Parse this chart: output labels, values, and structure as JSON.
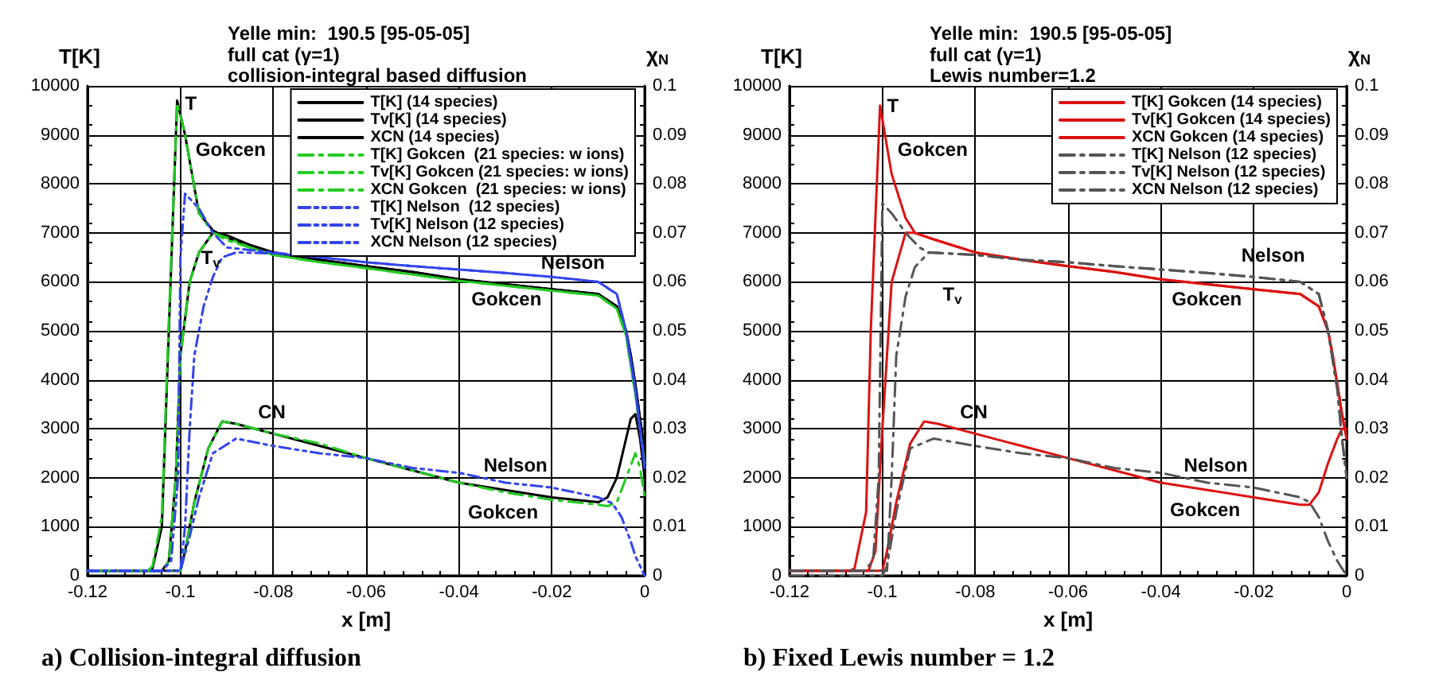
{
  "chart_data": [
    {
      "type": "line",
      "title": "Yelle min:  190.5 [95-05-05]",
      "subtitle": "full cat (γ=1)\ncollision-integral based diffusion",
      "xlabel": "x [m]",
      "ylabel": "T[K]",
      "y2label": "χ$_{N}$",
      "xlim": [
        -0.12,
        0
      ],
      "xticks": [
        -0.12,
        -0.1,
        -0.08,
        -0.06,
        -0.04,
        -0.02,
        0
      ],
      "ylim": [
        0,
        10000
      ],
      "yticks": [
        0,
        1000,
        2000,
        3000,
        4000,
        5000,
        6000,
        7000,
        8000,
        9000,
        10000
      ],
      "y2lim": [
        0,
        0.1
      ],
      "y2ticks": [
        0,
        0.01,
        0.02,
        0.03,
        0.04,
        0.05,
        0.06,
        0.07,
        0.08,
        0.09,
        0.1
      ],
      "grid": true,
      "legend": "top right",
      "marker": "none",
      "series": [
        {
          "name": "T[K] (14 species)",
          "color": "#000000",
          "line_style": "solid",
          "x": [
            -0.12,
            -0.107,
            -0.106,
            -0.104,
            -0.1025,
            -0.1007,
            -0.099,
            -0.096,
            -0.093,
            -0.09,
            -0.085,
            -0.08,
            -0.07,
            -0.06,
            -0.05,
            -0.04,
            -0.03,
            -0.02,
            -0.01,
            -0.006,
            -0.004,
            -0.003,
            -0.002,
            -0.001,
            0
          ],
          "values": [
            100,
            100,
            150,
            1000,
            5000,
            9700,
            9000,
            7400,
            7050,
            6900,
            6750,
            6600,
            6450,
            6320,
            6200,
            6050,
            5950,
            5850,
            5750,
            5500,
            5000,
            4500,
            3900,
            3200,
            2500
          ]
        },
        {
          "name": "Tv[K] (14 species)",
          "color": "#000000",
          "line_style": "solid",
          "x": [
            -0.12,
            -0.104,
            -0.1025,
            -0.101,
            -0.1,
            -0.098,
            -0.096,
            -0.093,
            -0.09,
            -0.085,
            -0.08,
            -0.07,
            -0.06,
            -0.05,
            -0.04,
            -0.03,
            -0.02,
            -0.01,
            -0.006,
            -0.004,
            -0.003,
            -0.002,
            -0.001,
            0
          ],
          "values": [
            100,
            100,
            300,
            2000,
            4500,
            6000,
            6600,
            7000,
            6950,
            6750,
            6600,
            6450,
            6320,
            6200,
            6050,
            5950,
            5850,
            5750,
            5500,
            5000,
            4500,
            3900,
            3200,
            2500
          ]
        },
        {
          "name": "XCN (14 species)",
          "color": "#000000",
          "line_style": "solid",
          "axis": "y2",
          "x": [
            -0.12,
            -0.1,
            -0.099,
            -0.097,
            -0.094,
            -0.091,
            -0.088,
            -0.08,
            -0.07,
            -0.06,
            -0.05,
            -0.04,
            -0.03,
            -0.02,
            -0.01,
            -0.008,
            -0.006,
            -0.004,
            -0.003,
            -0.002,
            -0.001,
            0
          ],
          "values": [
            0.001,
            0.001,
            0.005,
            0.015,
            0.026,
            0.0315,
            0.031,
            0.029,
            0.0265,
            0.024,
            0.0215,
            0.019,
            0.0175,
            0.016,
            0.015,
            0.016,
            0.02,
            0.028,
            0.032,
            0.033,
            0.028,
            0.02
          ]
        },
        {
          "name": "T[K] Gokcen  (21 species: w ions)",
          "color": "#22cc22",
          "line_style": "dashed",
          "x": [
            -0.12,
            -0.107,
            -0.106,
            -0.104,
            -0.1025,
            -0.1007,
            -0.099,
            -0.096,
            -0.093,
            -0.09,
            -0.085,
            -0.08,
            -0.07,
            -0.06,
            -0.05,
            -0.04,
            -0.03,
            -0.02,
            -0.01,
            -0.006,
            -0.004,
            -0.003,
            -0.002,
            -0.001,
            0
          ],
          "values": [
            100,
            100,
            200,
            1200,
            5200,
            9650,
            9000,
            7400,
            7000,
            6850,
            6700,
            6550,
            6400,
            6280,
            6150,
            6020,
            5920,
            5820,
            5720,
            5450,
            4900,
            4300,
            3700,
            3000,
            2300
          ]
        },
        {
          "name": "Tv[K] Gokcen (21 species: w ions)",
          "color": "#22cc22",
          "line_style": "dashed",
          "x": [
            -0.12,
            -0.104,
            -0.1025,
            -0.101,
            -0.1,
            -0.098,
            -0.096,
            -0.093,
            -0.09,
            -0.085,
            -0.08,
            -0.07,
            -0.06,
            -0.05,
            -0.04,
            -0.03,
            -0.02,
            -0.01,
            -0.006,
            -0.004,
            -0.003,
            -0.002,
            -0.001,
            0
          ],
          "values": [
            100,
            100,
            300,
            2000,
            4500,
            6000,
            6600,
            7000,
            6900,
            6700,
            6550,
            6400,
            6280,
            6150,
            6020,
            5920,
            5820,
            5720,
            5450,
            4900,
            4300,
            3700,
            3000,
            2300
          ]
        },
        {
          "name": "XCN Gokcen  (21 species: w ions)",
          "color": "#22cc22",
          "line_style": "dashed",
          "axis": "y2",
          "x": [
            -0.12,
            -0.1,
            -0.099,
            -0.097,
            -0.094,
            -0.091,
            -0.088,
            -0.08,
            -0.07,
            -0.06,
            -0.05,
            -0.04,
            -0.03,
            -0.02,
            -0.01,
            -0.008,
            -0.006,
            -0.004,
            -0.002,
            -0.001,
            0
          ],
          "values": [
            0.001,
            0.001,
            0.005,
            0.015,
            0.026,
            0.0315,
            0.031,
            0.029,
            0.027,
            0.024,
            0.0215,
            0.019,
            0.017,
            0.0155,
            0.0145,
            0.0142,
            0.015,
            0.02,
            0.025,
            0.022,
            0.016
          ]
        },
        {
          "name": "T[K] Nelson  (12 species)",
          "color": "#3344ee",
          "line_style": "dotted",
          "x": [
            -0.12,
            -0.104,
            -0.102,
            -0.1005,
            -0.1,
            -0.099,
            -0.096,
            -0.093,
            -0.09,
            -0.08,
            -0.07,
            -0.06,
            -0.05,
            -0.04,
            -0.03,
            -0.02,
            -0.01,
            -0.006,
            -0.004,
            -0.002,
            -0.001,
            0
          ],
          "values": [
            100,
            100,
            300,
            2000,
            6500,
            7800,
            7500,
            7000,
            6700,
            6600,
            6500,
            6400,
            6320,
            6250,
            6180,
            6100,
            6000,
            5750,
            5000,
            3800,
            3000,
            2200
          ]
        },
        {
          "name": "Tv[K] Nelson (12 species)",
          "color": "#3344ee",
          "line_style": "dotted",
          "x": [
            -0.12,
            -0.1,
            -0.099,
            -0.098,
            -0.097,
            -0.095,
            -0.093,
            -0.091,
            -0.088,
            -0.08,
            -0.07,
            -0.06,
            -0.05,
            -0.04,
            -0.03,
            -0.02,
            -0.01,
            -0.006,
            -0.004,
            -0.002,
            -0.001,
            0
          ],
          "values": [
            100,
            100,
            1000,
            3000,
            4500,
            5500,
            6100,
            6500,
            6600,
            6580,
            6500,
            6400,
            6320,
            6250,
            6180,
            6100,
            6000,
            5750,
            5000,
            3800,
            3000,
            2200
          ]
        },
        {
          "name": "XCN Nelson (12 species)",
          "color": "#3344ee",
          "line_style": "dotted",
          "axis": "y2",
          "x": [
            -0.12,
            -0.1,
            -0.098,
            -0.096,
            -0.093,
            -0.088,
            -0.08,
            -0.07,
            -0.06,
            -0.05,
            -0.04,
            -0.03,
            -0.02,
            -0.01,
            -0.007,
            -0.005,
            -0.003,
            -0.002,
            -0.001,
            0
          ],
          "values": [
            0.001,
            0.001,
            0.008,
            0.016,
            0.025,
            0.028,
            0.0265,
            0.025,
            0.024,
            0.022,
            0.021,
            0.019,
            0.018,
            0.016,
            0.0148,
            0.012,
            0.007,
            0.004,
            0.002,
            0
          ]
        }
      ],
      "annotations": [
        "a) Collision-integral diffusion",
        "T",
        "Gokcen",
        "T$_{v}$",
        "Nelson",
        "Gokcen",
        "CN",
        "Nelson",
        "Gokcen"
      ]
    },
    {
      "type": "line",
      "title": "Yelle min:  190.5 [95-05-05]",
      "subtitle": "full cat (γ=1)\nLewis number=1.2",
      "xlabel": "x [m]",
      "ylabel": "T[K]",
      "y2label": "χ$_{N}$",
      "xlim": [
        -0.12,
        0
      ],
      "xticks": [
        -0.12,
        -0.1,
        -0.08,
        -0.06,
        -0.04,
        -0.02,
        0
      ],
      "ylim": [
        0,
        10000
      ],
      "yticks": [
        0,
        1000,
        2000,
        3000,
        4000,
        5000,
        6000,
        7000,
        8000,
        9000,
        10000
      ],
      "y2lim": [
        0,
        0.1
      ],
      "y2ticks": [
        0,
        0.01,
        0.02,
        0.03,
        0.04,
        0.05,
        0.06,
        0.07,
        0.08,
        0.09,
        0.1
      ],
      "grid": true,
      "legend": "top right",
      "marker": "none",
      "series": [
        {
          "name": "T[K] Gokcen (14 species)",
          "color": "#dd1111",
          "line_style": "solid",
          "x": [
            -0.12,
            -0.107,
            -0.106,
            -0.1035,
            -0.1025,
            -0.1005,
            -0.098,
            -0.095,
            -0.093,
            -0.09,
            -0.085,
            -0.08,
            -0.07,
            -0.06,
            -0.05,
            -0.04,
            -0.03,
            -0.02,
            -0.01,
            -0.006,
            -0.004,
            -0.003,
            -0.002,
            -0.001,
            0
          ],
          "values": [
            100,
            100,
            150,
            1300,
            5000,
            9600,
            8200,
            7300,
            7000,
            6900,
            6750,
            6600,
            6450,
            6320,
            6200,
            6050,
            5950,
            5850,
            5750,
            5500,
            5000,
            4500,
            3900,
            3300,
            2800
          ]
        },
        {
          "name": "Tv[K] Gokcen (14 species)",
          "color": "#dd1111",
          "line_style": "solid",
          "x": [
            -0.12,
            -0.103,
            -0.1015,
            -0.1,
            -0.098,
            -0.095,
            -0.093,
            -0.09,
            -0.085,
            -0.08,
            -0.07,
            -0.06,
            -0.05,
            -0.04,
            -0.03,
            -0.02,
            -0.01,
            -0.006,
            -0.004,
            -0.003,
            -0.002,
            -0.001,
            0
          ],
          "values": [
            100,
            100,
            500,
            3000,
            6000,
            7000,
            7000,
            6900,
            6750,
            6600,
            6450,
            6320,
            6200,
            6050,
            5950,
            5850,
            5750,
            5500,
            5000,
            4500,
            3900,
            3300,
            2800
          ]
        },
        {
          "name": "XCN Gokcen (14 species)",
          "color": "#dd1111",
          "line_style": "solid",
          "axis": "y2",
          "x": [
            -0.12,
            -0.1,
            -0.099,
            -0.097,
            -0.094,
            -0.091,
            -0.088,
            -0.08,
            -0.07,
            -0.06,
            -0.05,
            -0.04,
            -0.03,
            -0.02,
            -0.01,
            -0.008,
            -0.006,
            -0.004,
            -0.002,
            -0.001,
            0
          ],
          "values": [
            0.001,
            0.001,
            0.005,
            0.015,
            0.027,
            0.0315,
            0.031,
            0.029,
            0.0265,
            0.024,
            0.0215,
            0.019,
            0.0175,
            0.016,
            0.0145,
            0.0145,
            0.017,
            0.023,
            0.028,
            0.03,
            0.03
          ]
        },
        {
          "name": "T[K] Nelson (12 species)",
          "color": "#555555",
          "line_style": "dashed",
          "x": [
            -0.12,
            -0.104,
            -0.102,
            -0.1008,
            -0.1,
            -0.098,
            -0.095,
            -0.092,
            -0.09,
            -0.08,
            -0.07,
            -0.06,
            -0.05,
            -0.04,
            -0.03,
            -0.02,
            -0.01,
            -0.006,
            -0.004,
            -0.002,
            -0.001,
            0
          ],
          "values": [
            100,
            100,
            300,
            2000,
            7600,
            7400,
            7000,
            6700,
            6600,
            6550,
            6450,
            6400,
            6320,
            6250,
            6180,
            6100,
            6000,
            5750,
            5000,
            3800,
            2800,
            2000
          ]
        },
        {
          "name": "Tv[K] Nelson (12 species)",
          "color": "#555555",
          "line_style": "dashed",
          "x": [
            -0.12,
            -0.099,
            -0.098,
            -0.097,
            -0.095,
            -0.093,
            -0.09,
            -0.08,
            -0.07,
            -0.06,
            -0.05,
            -0.04,
            -0.03,
            -0.02,
            -0.01,
            -0.006,
            -0.004,
            -0.002,
            -0.001,
            0
          ],
          "values": [
            100,
            100,
            2000,
            4500,
            5700,
            6300,
            6600,
            6550,
            6450,
            6400,
            6320,
            6250,
            6180,
            6100,
            6000,
            5750,
            5000,
            3800,
            2800,
            2000
          ]
        },
        {
          "name": "XCN Nelson (12 species)",
          "color": "#555555",
          "line_style": "dashed",
          "axis": "y2",
          "x": [
            -0.12,
            -0.1,
            -0.099,
            -0.097,
            -0.094,
            -0.089,
            -0.08,
            -0.07,
            -0.06,
            -0.05,
            -0.04,
            -0.03,
            -0.02,
            -0.01,
            -0.008,
            -0.006,
            -0.004,
            -0.002,
            0
          ],
          "values": [
            0,
            0,
            0.002,
            0.013,
            0.026,
            0.028,
            0.0265,
            0.025,
            0.024,
            0.022,
            0.021,
            0.019,
            0.018,
            0.016,
            0.015,
            0.012,
            0.007,
            0.003,
            0
          ]
        }
      ],
      "annotations": [
        "b) Fixed Lewis number = 1.2",
        "T",
        "Gokcen",
        "T$_{v}$",
        "Nelson",
        "Gokcen",
        "CN",
        "Nelson",
        "Gokcen"
      ]
    }
  ]
}
